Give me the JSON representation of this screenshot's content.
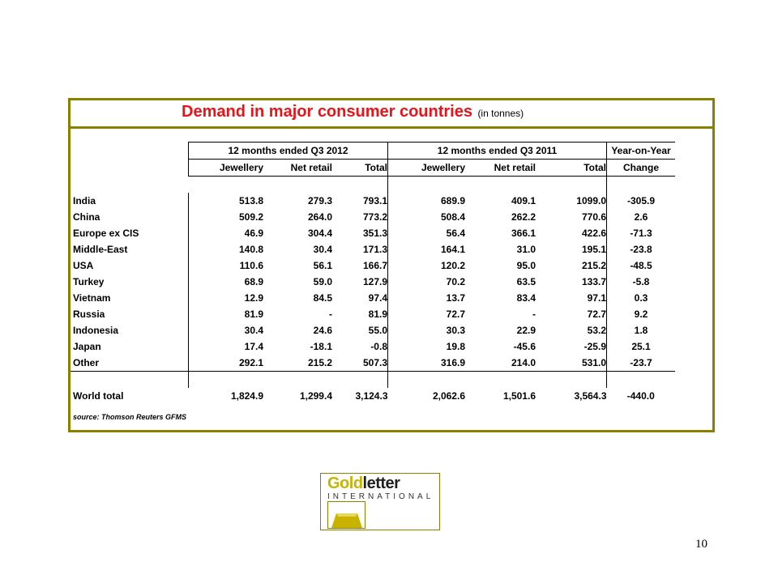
{
  "title": {
    "main": "Demand in major consumer countries",
    "unit": "(in tonnes)"
  },
  "column_groups": [
    "12 months ended Q3 2012",
    "12 months ended Q3 2011",
    "Year-on-Year"
  ],
  "columns": [
    "Jewellery",
    "Net retail",
    "Total",
    "Jewellery",
    "Net retail",
    "Total",
    "Change"
  ],
  "rows": [
    {
      "country": "India",
      "values": [
        "513.8",
        "279.3",
        "793.1",
        "689.9",
        "409.1",
        "1099.0",
        "-305.9"
      ]
    },
    {
      "country": "China",
      "values": [
        "509.2",
        "264.0",
        "773.2",
        "508.4",
        "262.2",
        "770.6",
        "2.6"
      ]
    },
    {
      "country": "Europe ex CIS",
      "values": [
        "46.9",
        "304.4",
        "351.3",
        "56.4",
        "366.1",
        "422.6",
        "-71.3"
      ]
    },
    {
      "country": "Middle-East",
      "values": [
        "140.8",
        "30.4",
        "171.3",
        "164.1",
        "31.0",
        "195.1",
        "-23.8"
      ]
    },
    {
      "country": "USA",
      "values": [
        "110.6",
        "56.1",
        "166.7",
        "120.2",
        "95.0",
        "215.2",
        "-48.5"
      ]
    },
    {
      "country": "Turkey",
      "values": [
        "68.9",
        "59.0",
        "127.9",
        "70.2",
        "63.5",
        "133.7",
        "-5.8"
      ]
    },
    {
      "country": "Vietnam",
      "values": [
        "12.9",
        "84.5",
        "97.4",
        "13.7",
        "83.4",
        "97.1",
        "0.3"
      ]
    },
    {
      "country": "Russia",
      "values": [
        "81.9",
        "-",
        "81.9",
        "72.7",
        "-",
        "72.7",
        "9.2"
      ]
    },
    {
      "country": "Indonesia",
      "values": [
        "30.4",
        "24.6",
        "55.0",
        "30.3",
        "22.9",
        "53.2",
        "1.8"
      ]
    },
    {
      "country": "Japan",
      "values": [
        "17.4",
        "-18.1",
        "-0.8",
        "19.8",
        "-45.6",
        "-25.9",
        "25.1"
      ]
    },
    {
      "country": "Other",
      "values": [
        "292.1",
        "215.2",
        "507.3",
        "316.9",
        "214.0",
        "531.0",
        "-23.7"
      ]
    }
  ],
  "total": {
    "country": "World total",
    "values": [
      "1,824.9",
      "1,299.4",
      "3,124.3",
      "2,062.6",
      "1,501.6",
      "3,564.3",
      "-440.0"
    ]
  },
  "source": "source: Thomson Reuters GFMS",
  "logo": {
    "word_gold": "Gold",
    "word_letter": "letter",
    "sub": "INTERNATIONAL"
  },
  "page_number": "10",
  "colors": {
    "frame": "#8a8000",
    "title": "#e8141a",
    "logo_gold": "#c7b300"
  }
}
